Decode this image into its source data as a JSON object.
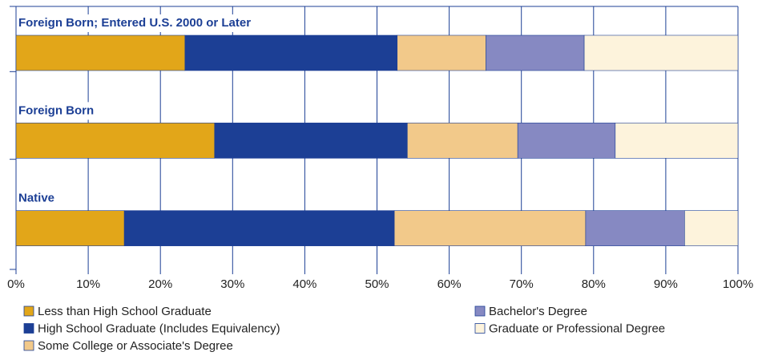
{
  "chart_data": {
    "type": "stacked-bar-horizontal",
    "categories": [
      "Foreign Born; Entered U.S. 2000 or Later",
      "Foreign Born",
      "Native"
    ],
    "series": [
      {
        "name": "Less than High School Graduate",
        "color": "#e2a619",
        "values": [
          23.4,
          27.5,
          15.0
        ]
      },
      {
        "name": "High School Graduate (Includes Equivalency)",
        "color": "#1c3f95",
        "values": [
          29.4,
          26.7,
          37.4
        ]
      },
      {
        "name": "Some College or Associate's Degree",
        "color": "#f2c98a",
        "values": [
          12.3,
          15.3,
          26.5
        ]
      },
      {
        "name": "Bachelor's Degree",
        "color": "#8689c2",
        "values": [
          13.6,
          13.5,
          13.7
        ]
      },
      {
        "name": "Graduate or Professional Degree",
        "color": "#fdf3dc",
        "values": [
          21.3,
          17.0,
          7.4
        ]
      }
    ],
    "xlim": [
      0,
      100
    ],
    "xticks": [
      {
        "value": 0,
        "label": "0%"
      },
      {
        "value": 10,
        "label": "10%"
      },
      {
        "value": 20,
        "label": "20%"
      },
      {
        "value": 30,
        "label": "30%"
      },
      {
        "value": 40,
        "label": "40%"
      },
      {
        "value": 50,
        "label": "50%"
      },
      {
        "value": 60,
        "label": "60%"
      },
      {
        "value": 70,
        "label": "70%"
      },
      {
        "value": 80,
        "label": "80%"
      },
      {
        "value": 90,
        "label": "90%"
      },
      {
        "value": 100,
        "label": "100%"
      }
    ],
    "grid": true
  }
}
